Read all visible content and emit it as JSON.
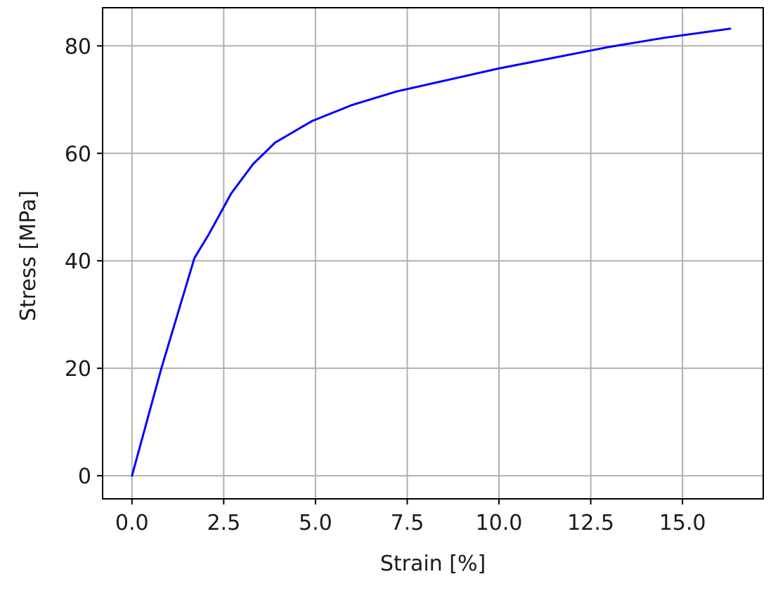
{
  "chart_data": {
    "type": "line",
    "title": "",
    "xlabel": "Strain [%]",
    "ylabel": "Stress [MPa]",
    "xlim": [
      -0.8,
      17.2
    ],
    "ylim": [
      -4.3,
      87.1
    ],
    "grid": true,
    "xticks": [
      0.0,
      2.5,
      5.0,
      7.5,
      10.0,
      12.5,
      15.0
    ],
    "xtick_labels": [
      "0.0",
      "2.5",
      "5.0",
      "7.5",
      "10.0",
      "12.5",
      "15.0"
    ],
    "yticks": [
      0,
      20,
      40,
      60,
      80
    ],
    "ytick_labels": [
      "0",
      "20",
      "40",
      "60",
      "80"
    ],
    "series": [
      {
        "color": "#0000ff",
        "x": [
          0.0,
          0.8,
          1.7,
          2.1,
          2.7,
          3.3,
          3.9,
          4.9,
          6.0,
          7.2,
          8.5,
          10.0,
          11.5,
          13.0,
          14.5,
          16.3
        ],
        "y": [
          0.0,
          20.0,
          40.5,
          45.0,
          52.5,
          58.0,
          62.0,
          66.0,
          69.0,
          71.5,
          73.5,
          75.8,
          77.8,
          79.8,
          81.5,
          83.2
        ]
      }
    ]
  }
}
